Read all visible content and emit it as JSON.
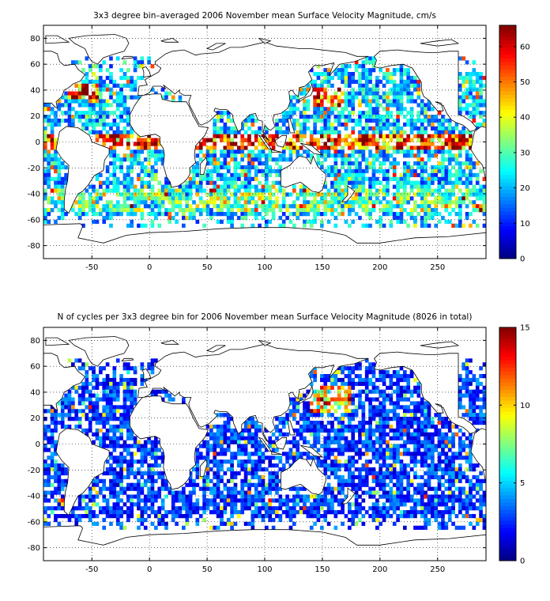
{
  "chart_data": [
    {
      "type": "heatmap",
      "title": "3x3 degree bin–averaged 2006 November mean Surface Velocity Magnitude, cm/s",
      "xlabel": "",
      "ylabel": "",
      "xlim": [
        -92,
        292
      ],
      "ylim": [
        -90,
        90
      ],
      "x_ticks": [
        -50,
        0,
        50,
        100,
        150,
        200,
        250
      ],
      "y_ticks": [
        80,
        60,
        40,
        20,
        0,
        -20,
        -40,
        -60,
        -80
      ],
      "grid": true,
      "bin_size_deg": 3,
      "colorbar": {
        "min": 0,
        "max": 66,
        "ticks": [
          0,
          10,
          20,
          30,
          40,
          50,
          60
        ]
      },
      "field": "speed",
      "seed": 17
    },
    {
      "type": "heatmap",
      "title": "N of cycles per 3x3 degree bin for 2006 November mean Surface Velocity Magnitude (8026 in total)",
      "xlabel": "",
      "ylabel": "",
      "xlim": [
        -92,
        292
      ],
      "ylim": [
        -90,
        90
      ],
      "x_ticks": [
        -50,
        0,
        50,
        100,
        150,
        200,
        250
      ],
      "y_ticks": [
        80,
        60,
        40,
        20,
        0,
        -20,
        -40,
        -60,
        -80
      ],
      "grid": true,
      "bin_size_deg": 3,
      "colorbar": {
        "min": 0,
        "max": 15,
        "ticks": [
          0,
          5,
          10,
          15
        ]
      },
      "field": "count",
      "seed": 91
    }
  ],
  "colors": {
    "background": "#ffffff",
    "axes": "#000000",
    "coast": "#000000"
  }
}
